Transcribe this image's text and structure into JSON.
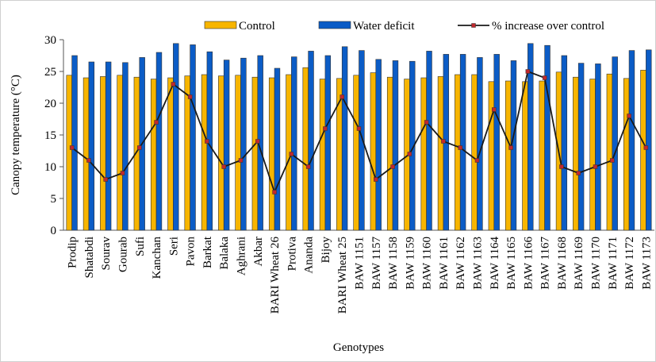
{
  "chart_data": {
    "type": "bar",
    "y_label": "Canopy temperature (°C)",
    "x_label": "Genotypes",
    "categories": [
      "Prodip",
      "Shatabdi",
      "Sourav",
      "Gourab",
      "Sufi",
      "Kanchan",
      "Seri",
      "Pavon",
      "Barkat",
      "Balaka",
      "Aghrani",
      "Akbar",
      "BARI Wheat 26",
      "Protiva",
      "Ananda",
      "Bijoy",
      "BARI Wheat 25",
      "BAW 1151",
      "BAW 1157",
      "BAW 1158",
      "BAW 1159",
      "BAW 1160",
      "BAW 1161",
      "BAW 1162",
      "BAW 1163",
      "BAW 1164",
      "BAW 1165",
      "BAW 1166",
      "BAW 1167",
      "BAW 1168",
      "BAW 1169",
      "BAW 1170",
      "BAW 1171",
      "BAW 1172",
      "BAW 1173"
    ],
    "series": [
      {
        "name": "Control",
        "type": "bar",
        "color": "#f7b500",
        "values": [
          24.4,
          24.0,
          24.2,
          24.4,
          24.1,
          23.8,
          24.0,
          24.3,
          24.5,
          24.3,
          24.4,
          24.1,
          24.0,
          24.5,
          25.6,
          23.8,
          23.9,
          24.4,
          24.8,
          24.1,
          23.8,
          24.0,
          24.2,
          24.5,
          24.5,
          23.4,
          23.5,
          23.4,
          23.5,
          24.9,
          24.1,
          23.8,
          24.6,
          23.9,
          25.2
        ]
      },
      {
        "name": "Water deficit",
        "type": "bar",
        "color": "#0b5cc6",
        "values": [
          27.5,
          26.5,
          26.5,
          26.4,
          27.2,
          28.0,
          29.4,
          29.2,
          28.1,
          26.8,
          27.1,
          27.5,
          25.5,
          27.3,
          28.2,
          27.5,
          28.9,
          28.3,
          26.9,
          26.7,
          26.6,
          28.2,
          27.7,
          27.7,
          27.2,
          27.7,
          26.7,
          29.4,
          29.1,
          27.5,
          26.3,
          26.2,
          27.3,
          28.3,
          28.4
        ]
      },
      {
        "name": "% increase over control",
        "type": "line",
        "color": "#1a1a1a",
        "marker_color": "#c0282d",
        "values": [
          13,
          11,
          8,
          9,
          13,
          17,
          23,
          21,
          14,
          10,
          11,
          14,
          6,
          12,
          10,
          16,
          21,
          16,
          8,
          10,
          12,
          17,
          14,
          13,
          11,
          19,
          13,
          25,
          24,
          10,
          9,
          10,
          11,
          18,
          13
        ]
      }
    ],
    "ylim": [
      0,
      30
    ],
    "yticks": [
      0,
      5,
      10,
      15,
      20,
      25,
      30
    ],
    "legend": "top"
  }
}
